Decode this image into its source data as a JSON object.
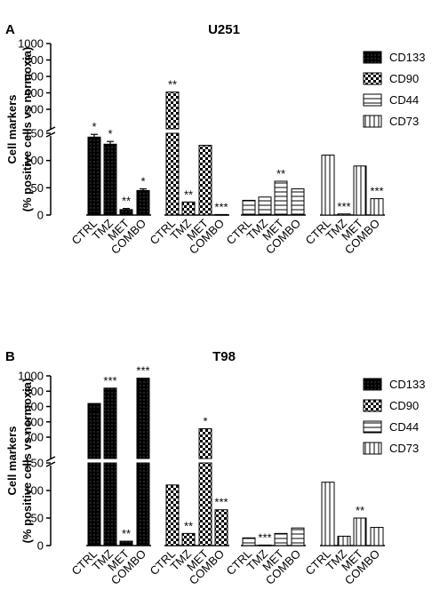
{
  "chart_data": [
    {
      "panel": "A",
      "type": "bar",
      "title": "U251",
      "ylabel_line1": "Cell markers",
      "ylabel_line2": "(% positive cells vs normoxia)",
      "categories": [
        "CTRL",
        "TMZ",
        "MET",
        "COMBO"
      ],
      "y_axis_break": true,
      "yticks_upper": [
        "1000",
        "800",
        "600",
        "400",
        "200"
      ],
      "yticks_lower": [
        "150",
        "100",
        "50",
        "0"
      ],
      "series": [
        {
          "name": "CD133",
          "values": [
            143,
            130,
            10,
            45
          ],
          "errors": [
            5,
            5,
            2,
            3
          ],
          "significance": [
            "*",
            "*",
            "**",
            "*"
          ]
        },
        {
          "name": "CD90",
          "values": [
            410,
            24,
            128,
            1
          ],
          "errors": [
            0,
            0,
            0,
            0
          ],
          "significance": [
            "**",
            "**",
            "",
            "***"
          ]
        },
        {
          "name": "CD44",
          "values": [
            27,
            33,
            62,
            48
          ],
          "errors": [
            0,
            0,
            0,
            0
          ],
          "significance": [
            "",
            "",
            "**",
            ""
          ]
        },
        {
          "name": "CD73",
          "values": [
            110,
            2,
            90,
            30
          ],
          "errors": [
            0,
            0,
            0,
            0
          ],
          "significance": [
            "",
            "***",
            "",
            "***"
          ]
        }
      ],
      "legend": [
        "CD133",
        "CD90",
        "CD44",
        "CD73"
      ],
      "legend_position": "right"
    },
    {
      "panel": "B",
      "type": "bar",
      "title": "T98",
      "ylabel_line1": "Cell markers",
      "ylabel_line2": "(% positive cells vs normoxia)",
      "categories": [
        "CTRL",
        "TMZ",
        "MET",
        "COMBO"
      ],
      "y_axis_break": true,
      "yticks_upper": [
        "1000",
        "800",
        "600",
        "400",
        "200"
      ],
      "yticks_lower": [
        "150",
        "100",
        "50",
        "0"
      ],
      "series": [
        {
          "name": "CD133",
          "values": [
            640,
            840,
            8,
            970
          ],
          "errors": [
            0,
            0,
            0,
            0
          ],
          "significance": [
            "***",
            "***",
            "**",
            "***"
          ]
        },
        {
          "name": "CD90",
          "values": [
            110,
            22,
            310,
            65
          ],
          "errors": [
            0,
            0,
            0,
            0
          ],
          "significance": [
            "",
            "**",
            "*",
            "***"
          ]
        },
        {
          "name": "CD44",
          "values": [
            14,
            1,
            22,
            32
          ],
          "errors": [
            0,
            0,
            0,
            0
          ],
          "significance": [
            "",
            "***",
            "",
            ""
          ]
        },
        {
          "name": "CD73",
          "values": [
            115,
            17,
            50,
            33
          ],
          "errors": [
            0,
            0,
            0,
            0
          ],
          "significance": [
            "",
            "",
            "**",
            ""
          ]
        }
      ],
      "legend": [
        "CD133",
        "CD90",
        "CD44",
        "CD73"
      ],
      "legend_position": "right"
    }
  ]
}
